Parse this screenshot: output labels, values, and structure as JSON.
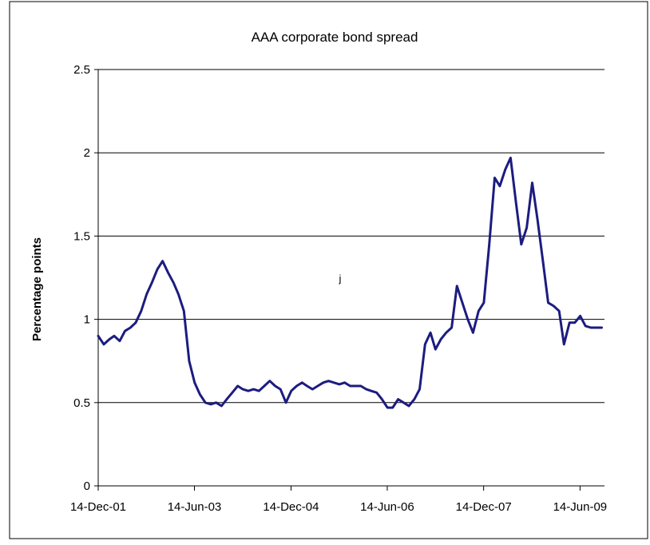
{
  "chart_data": {
    "type": "line",
    "title": "AAA corporate bond spread",
    "xlabel": "",
    "ylabel": "Percentage points",
    "ylim": [
      0,
      2.5
    ],
    "yticks": [
      "0",
      "0.5",
      "1",
      "1.5",
      "2",
      "2.5"
    ],
    "xlim": [
      "2001-12-14",
      "2009-10-31"
    ],
    "xticks": [
      {
        "label": "14-Dec-01",
        "date": "2001-12-14"
      },
      {
        "label": "14-Jun-03",
        "date": "2003-06-14"
      },
      {
        "label": "14-Dec-04",
        "date": "2004-12-14"
      },
      {
        "label": "14-Jun-06",
        "date": "2006-06-14"
      },
      {
        "label": "14-Dec-07",
        "date": "2007-12-14"
      },
      {
        "label": "14-Jun-09",
        "date": "2009-06-14"
      }
    ],
    "grid": "horizontal",
    "legend": "none",
    "annotations": [
      "j"
    ],
    "colors": {
      "line": "#1c1c80",
      "grid": "#000000",
      "border": "#000000"
    },
    "series": [
      {
        "x": [
          "2001-12-14",
          "2002-01-15",
          "2002-02-15",
          "2002-03-15",
          "2002-04-15",
          "2002-05-15",
          "2002-06-15",
          "2002-07-15",
          "2002-08-15",
          "2002-09-15",
          "2002-10-15",
          "2002-11-15",
          "2002-12-15",
          "2003-01-15",
          "2003-02-15",
          "2003-03-15",
          "2003-04-15",
          "2003-05-15",
          "2003-06-15",
          "2003-07-15",
          "2003-08-15",
          "2003-09-15",
          "2003-10-15",
          "2003-11-15",
          "2003-12-15",
          "2004-01-15",
          "2004-02-15",
          "2004-03-15",
          "2004-04-15",
          "2004-05-15",
          "2004-06-15",
          "2004-07-15",
          "2004-08-15",
          "2004-09-15",
          "2004-10-15",
          "2004-11-15",
          "2004-12-15",
          "2005-01-15",
          "2005-02-15",
          "2005-03-15",
          "2005-04-15",
          "2005-05-15",
          "2005-06-15",
          "2005-07-15",
          "2005-08-15",
          "2005-09-15",
          "2005-10-15",
          "2005-11-15",
          "2005-12-15",
          "2006-01-15",
          "2006-02-15",
          "2006-03-15",
          "2006-04-15",
          "2006-05-15",
          "2006-06-15",
          "2006-07-15",
          "2006-08-15",
          "2006-09-15",
          "2006-10-15",
          "2006-11-15",
          "2006-12-15",
          "2007-01-15",
          "2007-02-15",
          "2007-03-15",
          "2007-04-15",
          "2007-05-15",
          "2007-06-15",
          "2007-07-15",
          "2007-08-15",
          "2007-09-15",
          "2007-10-15",
          "2007-11-15",
          "2007-12-15",
          "2008-01-15",
          "2008-02-15",
          "2008-03-15",
          "2008-04-15",
          "2008-05-15",
          "2008-06-15",
          "2008-07-15",
          "2008-08-15",
          "2008-09-15",
          "2008-10-15",
          "2008-11-15",
          "2008-12-15",
          "2009-01-15",
          "2009-02-15",
          "2009-03-15",
          "2009-04-15",
          "2009-05-15",
          "2009-06-15",
          "2009-07-15",
          "2009-08-15",
          "2009-09-15",
          "2009-10-15"
        ],
        "y": [
          0.9,
          0.85,
          0.88,
          0.9,
          0.87,
          0.93,
          0.95,
          0.98,
          1.05,
          1.15,
          1.22,
          1.3,
          1.35,
          1.28,
          1.22,
          1.15,
          1.05,
          0.75,
          0.62,
          0.55,
          0.5,
          0.49,
          0.5,
          0.48,
          0.52,
          0.56,
          0.6,
          0.58,
          0.57,
          0.58,
          0.57,
          0.6,
          0.63,
          0.6,
          0.58,
          0.5,
          0.57,
          0.6,
          0.62,
          0.6,
          0.58,
          0.6,
          0.62,
          0.63,
          0.62,
          0.61,
          0.62,
          0.6,
          0.6,
          0.6,
          0.58,
          0.57,
          0.56,
          0.52,
          0.47,
          0.47,
          0.52,
          0.5,
          0.48,
          0.52,
          0.58,
          0.85,
          0.92,
          0.82,
          0.88,
          0.92,
          0.95,
          1.2,
          1.1,
          1.0,
          0.92,
          1.05,
          1.1,
          1.45,
          1.85,
          1.8,
          1.9,
          1.97,
          1.7,
          1.45,
          1.55,
          1.82,
          1.6,
          1.35,
          1.1,
          1.08,
          1.05,
          0.85,
          0.98,
          0.98,
          1.02,
          0.96,
          0.95,
          0.95,
          0.95
        ]
      }
    ]
  }
}
